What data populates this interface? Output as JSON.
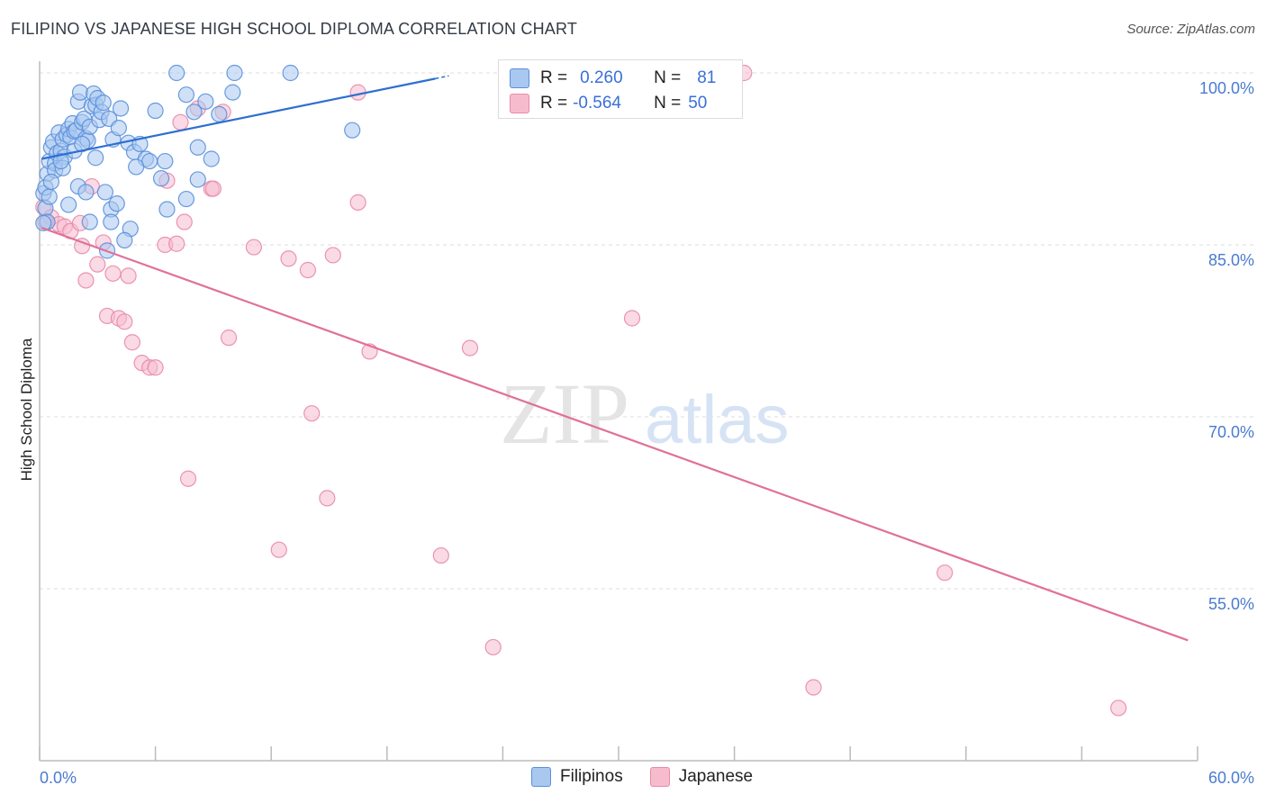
{
  "title": "FILIPINO VS JAPANESE HIGH SCHOOL DIPLOMA CORRELATION CHART",
  "source": "Source: ZipAtlas.com",
  "watermark": {
    "zip": "ZIP",
    "atlas": "atlas"
  },
  "legend": {
    "filipino": {
      "r_label": "R =",
      "r_value": "0.260",
      "n_label": "N =",
      "n_value": "81"
    },
    "japanese": {
      "r_label": "R =",
      "r_value": "-0.564",
      "n_label": "N =",
      "n_value": "50"
    }
  },
  "bottom_legend": {
    "filipino": "Filipinos",
    "japanese": "Japanese"
  },
  "colors": {
    "filipino_fill": "#a9c8f0",
    "filipino_stroke": "#5a8fdc",
    "filipino_line": "#2f6fd0",
    "japanese_fill": "#f6bccd",
    "japanese_stroke": "#e88aa8",
    "japanese_line": "#e0709a",
    "tick_text": "#4a7bd0",
    "grid": "#dddddd"
  },
  "chart_data": {
    "type": "scatter",
    "xlabel": "",
    "ylabel": "High School Diploma",
    "xlim": [
      0,
      60
    ],
    "ylim": [
      41,
      101.5
    ],
    "x_tick_labels": [
      "0.0%",
      "60.0%"
    ],
    "y_ticks": [
      55,
      70,
      85,
      100
    ],
    "y_tick_labels": [
      "55.0%",
      "70.0%",
      "85.0%",
      "100.0%"
    ],
    "series": [
      {
        "name": "Filipinos",
        "r": 0.26,
        "n": 81,
        "trend": {
          "x0": 0.1,
          "y0": 92.5,
          "x1": 20.5,
          "y1": 99.5
        },
        "points": [
          [
            0.2,
            89.5
          ],
          [
            0.3,
            88.2
          ],
          [
            0.4,
            87.0
          ],
          [
            0.4,
            91.2
          ],
          [
            0.5,
            92.3
          ],
          [
            0.6,
            93.5
          ],
          [
            0.7,
            94.0
          ],
          [
            0.8,
            92.1
          ],
          [
            0.9,
            93.0
          ],
          [
            1.0,
            94.8
          ],
          [
            1.1,
            93.2
          ],
          [
            1.2,
            94.2
          ],
          [
            1.3,
            92.7
          ],
          [
            1.4,
            94.6
          ],
          [
            1.5,
            95.1
          ],
          [
            1.6,
            94.4
          ],
          [
            1.7,
            95.6
          ],
          [
            1.8,
            94.9
          ],
          [
            1.9,
            95.0
          ],
          [
            2.0,
            97.5
          ],
          [
            2.1,
            98.3
          ],
          [
            2.2,
            95.7
          ],
          [
            2.3,
            96.0
          ],
          [
            2.4,
            94.3
          ],
          [
            2.5,
            94.1
          ],
          [
            2.6,
            95.3
          ],
          [
            2.7,
            97.1
          ],
          [
            2.8,
            98.2
          ],
          [
            2.9,
            97.2
          ],
          [
            3.0,
            97.8
          ],
          [
            3.1,
            95.9
          ],
          [
            3.2,
            96.6
          ],
          [
            3.3,
            97.4
          ],
          [
            3.6,
            96.0
          ],
          [
            4.2,
            96.9
          ],
          [
            4.6,
            93.9
          ],
          [
            4.9,
            93.1
          ],
          [
            5.5,
            92.5
          ],
          [
            6.0,
            96.7
          ],
          [
            5.7,
            92.3
          ],
          [
            5.0,
            91.8
          ],
          [
            6.5,
            92.3
          ],
          [
            7.1,
            100.0
          ],
          [
            7.6,
            98.1
          ],
          [
            8.0,
            96.6
          ],
          [
            8.2,
            93.5
          ],
          [
            8.9,
            92.5
          ],
          [
            7.6,
            89.0
          ],
          [
            8.6,
            97.5
          ],
          [
            9.3,
            96.4
          ],
          [
            10.0,
            98.3
          ],
          [
            10.1,
            100.0
          ],
          [
            13.0,
            100.0
          ],
          [
            16.2,
            95.0
          ],
          [
            0.3,
            90.0
          ],
          [
            0.5,
            89.2
          ],
          [
            0.8,
            91.5
          ],
          [
            1.2,
            91.7
          ],
          [
            2.0,
            90.1
          ],
          [
            2.4,
            89.6
          ],
          [
            3.4,
            89.6
          ],
          [
            3.7,
            88.1
          ],
          [
            4.0,
            88.6
          ],
          [
            2.6,
            87.0
          ],
          [
            3.7,
            87.0
          ],
          [
            4.7,
            86.4
          ],
          [
            4.4,
            85.4
          ],
          [
            3.5,
            84.5
          ],
          [
            6.3,
            90.8
          ],
          [
            6.6,
            88.1
          ],
          [
            8.2,
            90.7
          ],
          [
            1.5,
            88.5
          ],
          [
            1.1,
            92.3
          ],
          [
            0.6,
            90.5
          ],
          [
            2.9,
            92.6
          ],
          [
            1.8,
            93.2
          ],
          [
            2.2,
            93.8
          ],
          [
            3.8,
            94.2
          ],
          [
            4.1,
            95.2
          ],
          [
            5.2,
            93.8
          ],
          [
            0.2,
            86.9
          ]
        ]
      },
      {
        "name": "Japanese",
        "r": -0.564,
        "n": 50,
        "trend": {
          "x0": 0.1,
          "y0": 86.5,
          "x1": 59.5,
          "y1": 50.5
        },
        "points": [
          [
            0.2,
            88.3
          ],
          [
            0.6,
            87.4
          ],
          [
            1.0,
            86.8
          ],
          [
            1.3,
            86.6
          ],
          [
            1.6,
            86.2
          ],
          [
            2.1,
            86.9
          ],
          [
            2.2,
            84.9
          ],
          [
            2.4,
            81.9
          ],
          [
            2.7,
            90.1
          ],
          [
            3.0,
            83.3
          ],
          [
            3.3,
            85.2
          ],
          [
            3.5,
            78.8
          ],
          [
            3.8,
            82.5
          ],
          [
            4.1,
            78.6
          ],
          [
            4.4,
            78.3
          ],
          [
            4.6,
            82.3
          ],
          [
            4.8,
            76.5
          ],
          [
            5.3,
            74.7
          ],
          [
            5.7,
            74.3
          ],
          [
            6.0,
            74.3
          ],
          [
            6.6,
            90.6
          ],
          [
            6.5,
            85.0
          ],
          [
            7.1,
            85.1
          ],
          [
            7.3,
            95.7
          ],
          [
            7.5,
            87.0
          ],
          [
            7.7,
            64.6
          ],
          [
            8.2,
            96.9
          ],
          [
            8.9,
            89.9
          ],
          [
            9.0,
            89.9
          ],
          [
            9.5,
            96.6
          ],
          [
            9.8,
            76.9
          ],
          [
            11.1,
            84.8
          ],
          [
            12.4,
            58.4
          ],
          [
            12.9,
            83.8
          ],
          [
            13.9,
            82.8
          ],
          [
            14.1,
            70.3
          ],
          [
            14.9,
            62.9
          ],
          [
            15.2,
            84.1
          ],
          [
            16.5,
            98.3
          ],
          [
            16.5,
            88.7
          ],
          [
            17.1,
            75.7
          ],
          [
            20.8,
            57.9
          ],
          [
            22.3,
            76.0
          ],
          [
            23.5,
            49.9
          ],
          [
            30.7,
            78.6
          ],
          [
            36.5,
            100.0
          ],
          [
            40.1,
            46.4
          ],
          [
            46.9,
            56.4
          ],
          [
            55.9,
            44.6
          ],
          [
            0.3,
            87.0
          ]
        ]
      }
    ]
  }
}
